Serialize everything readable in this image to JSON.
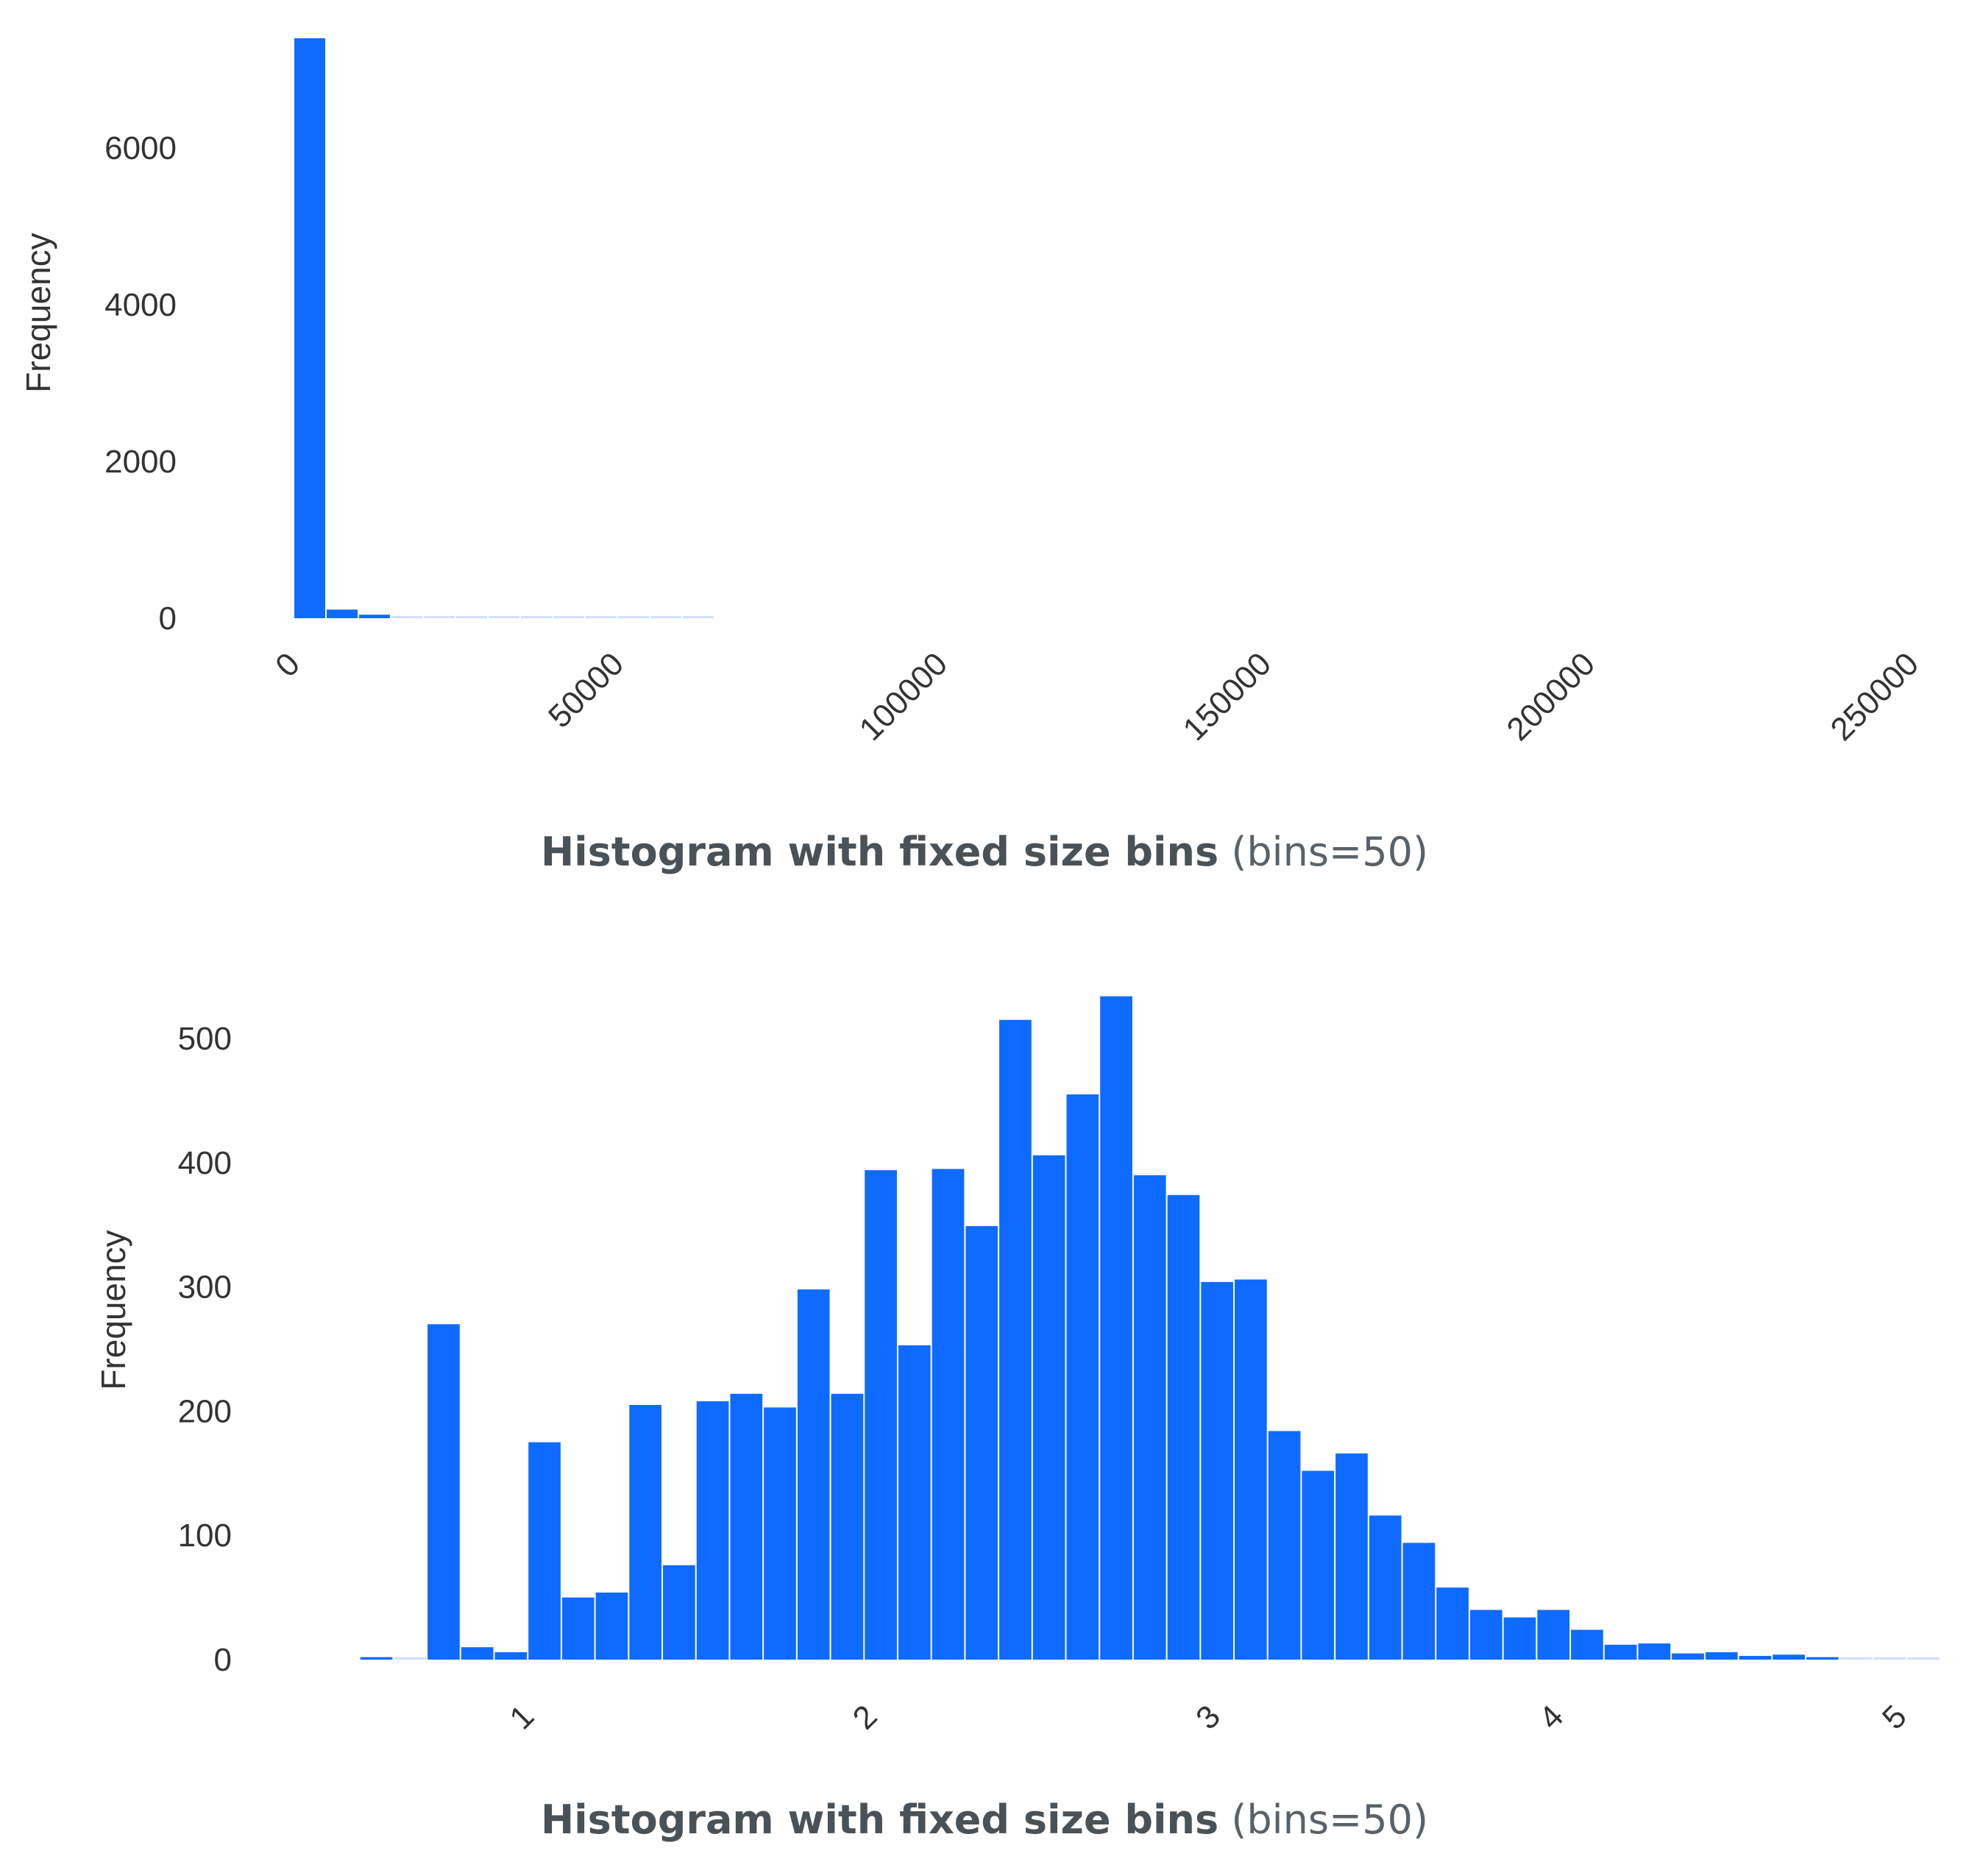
{
  "colors": {
    "bar": "#0f6bff",
    "bar_faint": "#cfe0ff",
    "text": "#333333",
    "caption": "#4a5257"
  },
  "chart_data": [
    {
      "type": "bar",
      "caption": {
        "title": "Histogram with fixed size bins",
        "subtitle": "(bins=50)"
      },
      "ylabel": "Frequency",
      "xlabel": "",
      "xlim": [
        0,
        250000
      ],
      "ylim": [
        0,
        7400
      ],
      "yticks": [
        "0",
        "2000",
        "4000",
        "6000"
      ],
      "xticks": [
        "0",
        "50000",
        "100000",
        "150000",
        "200000",
        "250000"
      ],
      "grid": false,
      "bin_width": 5000,
      "bins_start": [
        0,
        5000,
        10000,
        15000,
        20000,
        25000,
        30000,
        35000,
        40000,
        45000,
        50000,
        55000,
        60000
      ],
      "values": [
        7400,
        110,
        45,
        15,
        10,
        8,
        6,
        5,
        4,
        3,
        2,
        2,
        1
      ]
    },
    {
      "type": "bar",
      "caption": {
        "title": "Histogram with fixed size bins",
        "subtitle": "(bins=50)"
      },
      "ylabel": "Frequency",
      "xlabel": "",
      "xlim": [
        0.5,
        5.2
      ],
      "ylim": [
        0,
        535
      ],
      "yticks": [
        "0",
        "100",
        "200",
        "300",
        "400",
        "500"
      ],
      "xticks": [
        "1",
        "2",
        "3",
        "4",
        "5"
      ],
      "grid": false,
      "bin_width": 0.098,
      "bins_start": [
        0.51,
        0.608,
        0.706,
        0.804,
        0.902,
        1.0,
        1.098,
        1.196,
        1.294,
        1.392,
        1.49,
        1.588,
        1.686,
        1.784,
        1.882,
        1.98,
        2.078,
        2.176,
        2.274,
        2.372,
        2.47,
        2.568,
        2.666,
        2.764,
        2.862,
        2.96,
        3.058,
        3.156,
        3.254,
        3.352,
        3.45,
        3.548,
        3.646,
        3.744,
        3.842,
        3.94,
        4.038,
        4.136,
        4.234,
        4.332,
        4.43,
        4.528,
        4.626,
        4.724,
        4.822,
        4.92,
        5.018
      ],
      "values": [
        2,
        0,
        270,
        10,
        6,
        175,
        50,
        54,
        205,
        76,
        208,
        214,
        203,
        298,
        214,
        394,
        253,
        395,
        349,
        515,
        406,
        455,
        534,
        390,
        374,
        304,
        306,
        184,
        152,
        166,
        116,
        94,
        58,
        40,
        34,
        40,
        24,
        12,
        13,
        5,
        6,
        3,
        4,
        2,
        1,
        1,
        1
      ]
    }
  ]
}
